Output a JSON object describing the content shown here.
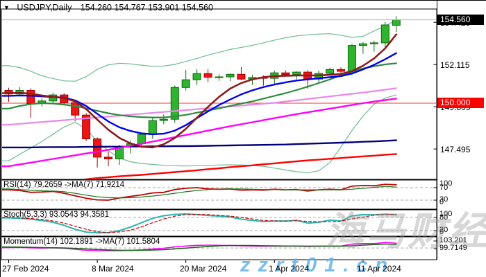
{
  "title_bar": {
    "dropdown_icon": "▼",
    "symbol": "USDJPY,Daily",
    "ohlc": "154.260 154.767 153.901 154.560"
  },
  "price_axis": {
    "tick_labels": [
      "154.425",
      "152.115",
      "149.805",
      "147.495"
    ],
    "tick_values": [
      154.425,
      152.115,
      149.805,
      147.495
    ],
    "current_price_label": "154.560",
    "current_price": 154.56,
    "current_badge_color": "#000000",
    "hline_label": "150.000",
    "hline_price": 150.0,
    "hline_badge_color": "#ff0000"
  },
  "date_axis": {
    "labels": [
      "27 Feb 2024",
      "8 Mar 2024",
      "20 Mar 2024",
      "1 Apr 2024",
      "11 Apr 2024"
    ],
    "tick_candle_indices": [
      0,
      8,
      16,
      24,
      32
    ]
  },
  "watermarks": {
    "center": "海马财经",
    "bottom": "zzrt01.cn"
  },
  "chart_data": {
    "type": "candlestick",
    "symbol": "USDJPY",
    "timeframe": "Daily",
    "title": "USDJPY,Daily 154.260 154.767 153.901 154.560",
    "last_candle_ohlc": {
      "open": 154.26,
      "high": 154.767,
      "low": 153.901,
      "close": 154.56
    },
    "price_range_visible": [
      145.9,
      155.15
    ],
    "grid": false,
    "colors": {
      "bull_fill": "#2fb42f",
      "bull_stroke": "#0c680c",
      "bear_fill": "#ed1515",
      "bear_stroke": "#a00000",
      "hline_150": "#ff3333",
      "current_price_line": "#b4b4b4"
    },
    "candles": {
      "open": [
        150.7,
        150.5,
        150.7,
        149.98,
        150.12,
        150.45,
        150.03,
        149.35,
        148.05,
        147.05,
        146.95,
        147.62,
        147.78,
        148.3,
        149.05,
        149.12,
        150.86,
        151.28,
        151.62,
        151.42,
        151.44,
        151.58,
        151.32,
        151.4,
        151.36,
        151.66,
        151.56,
        151.7,
        151.32,
        151.63,
        151.84,
        151.74,
        153.16,
        153.25,
        153.3,
        154.26
      ],
      "high": [
        150.85,
        150.88,
        150.82,
        150.25,
        150.58,
        150.55,
        150.1,
        149.45,
        148.12,
        147.35,
        147.72,
        147.95,
        148.38,
        149.18,
        149.38,
        150.97,
        151.82,
        151.86,
        151.86,
        151.58,
        151.62,
        151.97,
        151.55,
        151.52,
        151.78,
        151.8,
        151.74,
        151.8,
        151.78,
        151.94,
        151.96,
        153.24,
        153.34,
        153.42,
        154.44,
        154.767
      ],
      "low": [
        150.08,
        150.38,
        149.2,
        149.82,
        150.0,
        149.88,
        149.0,
        147.93,
        146.48,
        146.55,
        146.63,
        147.25,
        147.55,
        148.05,
        148.85,
        148.93,
        150.7,
        150.99,
        151.15,
        151.22,
        151.2,
        151.25,
        151.0,
        150.96,
        150.98,
        151.45,
        151.3,
        150.8,
        151.05,
        151.52,
        151.5,
        151.55,
        152.7,
        152.82,
        153.0,
        153.901
      ],
      "close": [
        150.5,
        150.7,
        149.98,
        150.12,
        150.45,
        150.03,
        149.35,
        148.05,
        147.05,
        146.95,
        147.62,
        147.78,
        148.3,
        149.05,
        149.12,
        150.86,
        151.28,
        151.62,
        151.42,
        151.44,
        151.58,
        151.32,
        151.4,
        151.36,
        151.66,
        151.56,
        151.7,
        151.32,
        151.63,
        151.84,
        151.74,
        153.16,
        153.25,
        153.3,
        154.28,
        154.56
      ]
    },
    "overlays": [
      {
        "name": "band-upper",
        "color": "#6dbb91",
        "width": 1.2,
        "layer": "back",
        "values": [
          152.05,
          151.95,
          151.75,
          151.5,
          151.35,
          151.22,
          151.2,
          151.45,
          151.85,
          152.1,
          152.18,
          152.15,
          152.08,
          152.02,
          152.03,
          152.12,
          152.28,
          152.45,
          152.63,
          152.78,
          152.94,
          153.05,
          153.16,
          153.3,
          153.45,
          153.58,
          153.68,
          153.74,
          153.78,
          153.8,
          153.72,
          153.6,
          153.66,
          153.95,
          154.22,
          154.55
        ]
      },
      {
        "name": "band-lower",
        "color": "#6dbb91",
        "width": 1.2,
        "layer": "back",
        "values": [
          146.85,
          147.2,
          147.55,
          147.9,
          148.3,
          148.7,
          148.95,
          148.6,
          147.9,
          147.4,
          147.0,
          146.8,
          146.7,
          146.65,
          146.6,
          146.58,
          146.57,
          146.58,
          146.6,
          146.62,
          146.63,
          146.62,
          146.6,
          146.55,
          146.45,
          146.35,
          146.25,
          146.2,
          146.3,
          146.75,
          147.6,
          148.5,
          149.3,
          149.95,
          150.28,
          150.45
        ]
      },
      {
        "name": "ma-navy",
        "color": "#00007a",
        "width": 2.4,
        "layer": "front",
        "values": [
          147.58,
          147.58,
          147.58,
          147.59,
          147.6,
          147.6,
          147.6,
          147.61,
          147.61,
          147.62,
          147.62,
          147.63,
          147.63,
          147.64,
          147.64,
          147.65,
          147.65,
          147.66,
          147.67,
          147.68,
          147.69,
          147.7,
          147.71,
          147.72,
          147.73,
          147.74,
          147.76,
          147.78,
          147.8,
          147.82,
          147.84,
          147.86,
          147.89,
          147.91,
          147.94,
          147.97
        ]
      },
      {
        "name": "ma-magenta",
        "color": "#ff00ff",
        "width": 2.4,
        "layer": "front",
        "values": [
          146.55,
          146.65,
          146.75,
          146.85,
          146.95,
          147.05,
          147.15,
          147.25,
          147.35,
          147.45,
          147.56,
          147.67,
          147.78,
          147.9,
          148.02,
          148.14,
          148.26,
          148.38,
          148.5,
          148.62,
          148.74,
          148.85,
          148.96,
          149.07,
          149.18,
          149.29,
          149.4,
          149.5,
          149.6,
          149.7,
          149.8,
          149.9,
          150.0,
          150.09,
          150.17,
          150.25
        ]
      },
      {
        "name": "ma-plum",
        "color": "#e987e9",
        "width": 2.2,
        "layer": "front",
        "values": [
          148.82,
          148.87,
          148.92,
          148.97,
          149.02,
          149.07,
          149.12,
          149.17,
          149.22,
          149.27,
          149.32,
          149.37,
          149.42,
          149.47,
          149.52,
          149.57,
          149.62,
          149.67,
          149.72,
          149.77,
          149.82,
          149.87,
          149.92,
          149.97,
          150.02,
          150.09,
          150.16,
          150.23,
          150.3,
          150.37,
          150.44,
          150.51,
          150.58,
          150.66,
          150.74,
          150.82
        ]
      },
      {
        "name": "ma-darkgreen",
        "color": "#2e8b3e",
        "width": 2.2,
        "layer": "front",
        "values": [
          149.7,
          149.85,
          149.95,
          150.0,
          149.98,
          149.92,
          149.85,
          149.72,
          149.58,
          149.45,
          149.35,
          149.28,
          149.24,
          149.22,
          149.22,
          149.28,
          149.36,
          149.48,
          149.6,
          149.72,
          149.85,
          149.98,
          150.1,
          150.25,
          150.4,
          150.55,
          150.72,
          150.9,
          151.1,
          151.3,
          151.52,
          151.72,
          151.9,
          152.02,
          152.12,
          152.18
        ]
      },
      {
        "name": "ma-red-slow",
        "color": "#ff0000",
        "width": 2.4,
        "layer": "front",
        "values": [
          145.45,
          145.5,
          145.55,
          145.6,
          145.66,
          145.72,
          145.78,
          145.84,
          145.9,
          145.95,
          146.0,
          146.04,
          146.08,
          146.13,
          146.18,
          146.23,
          146.28,
          146.33,
          146.39,
          146.44,
          146.5,
          146.55,
          146.6,
          146.66,
          146.71,
          146.77,
          146.82,
          146.87,
          146.91,
          146.96,
          147.0,
          147.05,
          147.09,
          147.13,
          147.18,
          147.22
        ]
      },
      {
        "name": "ma-blue",
        "color": "#0000f0",
        "width": 2.4,
        "layer": "front",
        "values": [
          150.4,
          150.42,
          150.41,
          150.37,
          150.34,
          150.3,
          150.15,
          149.85,
          149.42,
          149.0,
          148.68,
          148.48,
          148.35,
          148.3,
          148.33,
          148.5,
          148.8,
          149.18,
          149.55,
          149.9,
          150.2,
          150.48,
          150.7,
          150.88,
          151.02,
          151.14,
          151.24,
          151.3,
          151.36,
          151.42,
          151.48,
          151.62,
          151.85,
          152.1,
          152.4,
          152.74
        ]
      },
      {
        "name": "ma-maroon",
        "color": "#8b1c1c",
        "width": 2.6,
        "layer": "front",
        "values": [
          150.55,
          150.56,
          150.52,
          150.42,
          150.35,
          150.28,
          150.1,
          149.68,
          149.1,
          148.55,
          148.1,
          147.8,
          147.62,
          147.58,
          147.75,
          148.1,
          148.6,
          149.2,
          149.8,
          150.35,
          150.8,
          151.1,
          151.3,
          151.42,
          151.48,
          151.5,
          151.52,
          151.52,
          151.52,
          151.55,
          151.6,
          151.75,
          152.05,
          152.45,
          153.0,
          153.76
        ]
      }
    ],
    "panels": [
      {
        "id": "rsi",
        "label": "RSI(14) 79.2659  ->MA(7) 71.9214",
        "current_values": [
          79.2659,
          71.9214
        ],
        "levels": [
          70,
          30
        ],
        "axis_labels": [
          "100",
          "70",
          "30",
          "0"
        ],
        "range": [
          0,
          100
        ],
        "series": [
          {
            "name": "RSI(14)",
            "color": "#c00000",
            "width": 1.8,
            "values": [
              63,
              61,
              55,
              56,
              58,
              52,
              44,
              36,
              31,
              30,
              37,
              42,
              47,
              53,
              55,
              64,
              68,
              70,
              66,
              65,
              66,
              62,
              63,
              62,
              65,
              63,
              64,
              59,
              63,
              65,
              63,
              75,
              77,
              76,
              81,
              79.2659
            ]
          },
          {
            "name": "MA(7)",
            "color": "#1a7a1a",
            "width": 1.2,
            "values": [
              66,
              64,
              62,
              60,
              59,
              57,
              52,
              46,
              41,
              38,
              37,
              38,
              40,
              43,
              47,
              52,
              57,
              61,
              64,
              65,
              66,
              66,
              65,
              64,
              64,
              63,
              63,
              63,
              63,
              63,
              63,
              65,
              68,
              71,
              74,
              71.9214
            ]
          }
        ]
      },
      {
        "id": "stochastic",
        "label": "Stoch(5,3,3) 93.0543 94.3581",
        "current_values": [
          93.0543,
          94.3581
        ],
        "levels": [
          80,
          20
        ],
        "axis_labels": [
          "100",
          "80",
          "20",
          "0"
        ],
        "range": [
          0,
          100
        ],
        "series": [
          {
            "name": "%K",
            "color": "#2ab5ad",
            "width": 2,
            "values": [
              78,
              76,
              72,
              66,
              58,
              44,
              26,
              13,
              10,
              11,
              20,
              36,
              56,
              76,
              88,
              94,
              96,
              93,
              89,
              86,
              82,
              72,
              66,
              61,
              64,
              64,
              67,
              54,
              58,
              68,
              64,
              87,
              93,
              92,
              95,
              93.0543
            ]
          },
          {
            "name": "%D",
            "color": "#cc0000",
            "width": 1.2,
            "dash": "4,3",
            "values": [
              80,
              78,
              75,
              71,
              64,
              54,
              40,
              26,
              15,
              11,
              14,
              22,
              37,
              56,
              73,
              86,
              93,
              94,
              93,
              89,
              86,
              80,
              73,
              66,
              64,
              63,
              65,
              62,
              60,
              60,
              63,
              73,
              81,
              91,
              93,
              94.3581
            ]
          }
        ]
      },
      {
        "id": "momentum",
        "label": "Momentum(14) 102.1891  ->MA(7) 101.5804",
        "current_values": [
          102.1891,
          101.5804
        ],
        "levels": [
          100
        ],
        "axis_labels": [
          "103.201",
          "99.7149"
        ],
        "range": [
          98.9,
          103.8
        ],
        "series": [
          {
            "name": "Momentum(14)",
            "color": "#ff00ff",
            "width": 1.6,
            "values": [
              100.15,
              100.3,
              100.05,
              99.95,
              100.1,
              99.85,
              99.4,
              98.95,
              98.75,
              98.7,
              98.75,
              98.95,
              99.15,
              99.55,
              99.85,
              100.55,
              100.9,
              101.2,
              101.3,
              101.2,
              101.1,
              101.0,
              100.9,
              100.8,
              100.9,
              100.85,
              100.9,
              100.7,
              100.8,
              100.9,
              100.85,
              101.8,
              102.0,
              102.0,
              102.55,
              102.1891
            ]
          },
          {
            "name": "MA(7)",
            "color": "#156615",
            "width": 1.6,
            "values": [
              100.45,
              100.4,
              100.3,
              100.2,
              100.1,
              100.0,
              99.8,
              99.55,
              99.3,
              99.1,
              98.95,
              98.9,
              98.92,
              99.05,
              99.25,
              99.6,
              99.95,
              100.35,
              100.7,
              101.0,
              101.15,
              101.15,
              101.1,
              101.0,
              100.95,
              100.9,
              100.88,
              100.85,
              100.85,
              100.83,
              100.83,
              101.0,
              101.3,
              101.55,
              101.85,
              101.5804
            ]
          }
        ]
      }
    ]
  }
}
